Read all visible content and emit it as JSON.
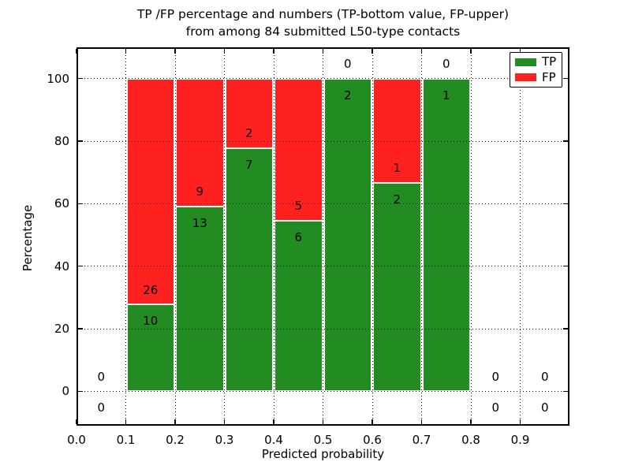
{
  "figure": {
    "title_line1": "TP /FP percentage and numbers (TP-bottom value, FP-upper)",
    "title_line2": "from among 84 submitted L50-type contacts"
  },
  "chart_data": {
    "type": "bar",
    "stacked": true,
    "normalization": "each bin stacked to 100 percent",
    "title": "TP /FP percentage and numbers (TP-bottom value, FP-upper) from among 84 submitted L50-type contacts",
    "xlabel": "Predicted probability",
    "ylabel": "Percentage",
    "total_contacts": 84,
    "bin_width": 0.1,
    "bin_starts": [
      0.0,
      0.1,
      0.2,
      0.3,
      0.4,
      0.5,
      0.6,
      0.7,
      0.8,
      0.9
    ],
    "series": [
      {
        "name": "TP",
        "color": "#228b22",
        "counts": [
          0,
          10,
          13,
          7,
          6,
          2,
          2,
          1,
          0,
          0
        ]
      },
      {
        "name": "FP",
        "color": "#ff2020",
        "counts": [
          0,
          26,
          9,
          2,
          5,
          0,
          1,
          0,
          0,
          0
        ]
      }
    ],
    "tp_percent_per_bin": [
      0,
      27.8,
      59.1,
      77.8,
      54.5,
      100,
      66.7,
      100,
      0,
      0
    ],
    "annotation_rule": "FP count printed just above the TP/FP boundary, TP count just below it",
    "xticks": [
      0.0,
      0.1,
      0.2,
      0.3,
      0.4,
      0.5,
      0.6,
      0.7,
      0.8,
      0.9
    ],
    "xtick_labels": [
      "0.0",
      "0.1",
      "0.2",
      "0.3",
      "0.4",
      "0.5",
      "0.6",
      "0.7",
      "0.8",
      "0.9"
    ],
    "yticks": [
      0,
      20,
      40,
      60,
      80,
      100
    ],
    "ytick_labels": [
      "0",
      "20",
      "40",
      "60",
      "80",
      "100"
    ],
    "xlim": [
      0.0,
      1.0
    ],
    "ylim": [
      -11,
      110
    ],
    "grid": "black dotted gridlines drawn above bars",
    "legend": {
      "position": "upper right",
      "entries": [
        "TP",
        "FP"
      ]
    }
  },
  "colors": {
    "tp_green": "#228b22",
    "fp_red": "#ff2020",
    "grid": "#000000",
    "frame": "#000000",
    "background": "#ffffff"
  }
}
